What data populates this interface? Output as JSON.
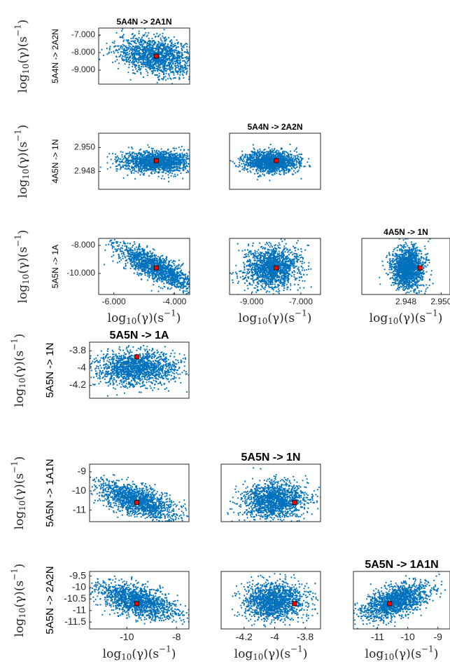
{
  "figure": {
    "axis_label": "log10(γ)(s⁻¹)"
  },
  "colors": {
    "points": "#0072BD",
    "marker": "#ff0000",
    "axes": "#262626"
  },
  "chart_data": [
    {
      "id": "a1",
      "type": "scatter",
      "title": "5A4N -> 2A1N",
      "ylabel": "5A4N -> 2A2N",
      "xlim": [
        -6.5,
        -3.5
      ],
      "ylim": [
        -9.8,
        -6.6
      ],
      "xticks": [],
      "yticks": [
        -9,
        -8,
        -7
      ],
      "yticklabels": [
        "-9.000",
        "-8.000",
        "-7.000"
      ],
      "cloud": {
        "cx": -4.6,
        "sx": 0.65,
        "cy": -8.2,
        "sy": 0.55,
        "rho": -0.3,
        "n": 1500
      },
      "marker": {
        "x": -4.6,
        "y": -8.2
      },
      "show_left_label": true,
      "show_bottom_label": false
    },
    {
      "id": "b1",
      "type": "scatter",
      "title": "",
      "ylabel": "4A5N -> 1N",
      "xlim": [
        -6.5,
        -3.5
      ],
      "ylim": [
        2.9465,
        2.9512
      ],
      "xticks": [],
      "yticks": [
        2.948,
        2.95
      ],
      "yticklabels": [
        "2.948",
        "2.950"
      ],
      "cloud": {
        "cx": -4.6,
        "sx": 0.6,
        "cy": 2.9488,
        "sy": 0.00045,
        "rho": 0,
        "n": 1500
      },
      "marker": {
        "x": -4.6,
        "y": 2.9489
      },
      "show_left_label": true,
      "show_bottom_label": false
    },
    {
      "id": "b2",
      "type": "scatter",
      "title": "5A4N -> 2A2N",
      "ylabel": "",
      "xlim": [
        -9.9,
        -6.2
      ],
      "ylim": [
        2.9465,
        2.9512
      ],
      "xticks": [],
      "yticks": [],
      "yticklabels": [],
      "cloud": {
        "cx": -8.2,
        "sx": 0.55,
        "cy": 2.9488,
        "sy": 0.00045,
        "rho": 0,
        "n": 1500
      },
      "marker": {
        "x": -8.0,
        "y": 2.9489
      },
      "show_left_label": false,
      "show_bottom_label": false
    },
    {
      "id": "c1",
      "type": "scatter",
      "title": "",
      "ylabel": "5A5N -> 1A",
      "xlim": [
        -6.5,
        -3.5
      ],
      "ylim": [
        -11.5,
        -7.5
      ],
      "xticks": [
        -6,
        -4
      ],
      "xticklabels": [
        "-6.000",
        "-4.000"
      ],
      "yticks": [
        -10,
        -8
      ],
      "yticklabels": [
        "-10.000",
        "-8.000"
      ],
      "cloud": {
        "cx": -4.6,
        "sx": 0.65,
        "cy": -9.6,
        "sy": 0.8,
        "rho": -0.8,
        "n": 1500
      },
      "marker": {
        "x": -4.6,
        "y": -9.6
      },
      "show_left_label": true,
      "show_bottom_label": true
    },
    {
      "id": "c2",
      "type": "scatter",
      "title": "",
      "ylabel": "",
      "xlim": [
        -9.9,
        -6.2
      ],
      "ylim": [
        -11.5,
        -7.5
      ],
      "xticks": [
        -9,
        -7
      ],
      "xticklabels": [
        "-9.000",
        "-7.000"
      ],
      "yticks": [],
      "yticklabels": [],
      "cloud": {
        "cx": -8.2,
        "sx": 0.55,
        "cy": -9.6,
        "sy": 0.75,
        "rho": 0.1,
        "n": 1500
      },
      "marker": {
        "x": -8.0,
        "y": -9.6
      },
      "show_left_label": false,
      "show_bottom_label": true
    },
    {
      "id": "c3",
      "type": "scatter",
      "title": "4A5N -> 1N",
      "ylabel": "",
      "xlim": [
        2.9455,
        2.9505
      ],
      "ylim": [
        -11.5,
        -7.5
      ],
      "xticks": [
        2.948,
        2.95
      ],
      "xticklabels": [
        "2.948",
        "2.950"
      ],
      "yticks": [],
      "yticklabels": [],
      "cloud": {
        "cx": 2.9481,
        "sx": 0.00045,
        "cy": -9.6,
        "sy": 0.75,
        "rho": 0,
        "n": 1500
      },
      "marker": {
        "x": 2.9488,
        "y": -9.6
      },
      "show_left_label": false,
      "show_bottom_label": true
    },
    {
      "id": "d1",
      "type": "scatter",
      "title": "5A5N -> 1A",
      "ylabel": "5A5N -> 1N",
      "xlim": [
        -11.5,
        -7.5
      ],
      "ylim": [
        -4.35,
        -3.7
      ],
      "xticks": [],
      "yticks": [
        -4.2,
        -4,
        -3.8
      ],
      "yticklabels": [
        "-4.2",
        "-4",
        "-3.8"
      ],
      "cloud": {
        "cx": -9.6,
        "sx": 0.8,
        "cy": -4.0,
        "sy": 0.1,
        "rho": 0,
        "n": 1500
      },
      "marker": {
        "x": -9.6,
        "y": -3.87
      },
      "show_left_label": true,
      "show_bottom_label": false
    },
    {
      "id": "e1",
      "type": "scatter",
      "title": "",
      "ylabel": "5A5N -> 1A1N",
      "xlim": [
        -11.5,
        -7.5
      ],
      "ylim": [
        -11.6,
        -8.6
      ],
      "xticks": [],
      "yticks": [
        -11,
        -10,
        -9
      ],
      "yticklabels": [
        "-11",
        "-10",
        "-9"
      ],
      "cloud": {
        "cx": -9.6,
        "sx": 0.8,
        "cy": -10.5,
        "sy": 0.5,
        "rho": -0.6,
        "n": 1500
      },
      "marker": {
        "x": -9.6,
        "y": -10.6
      },
      "show_left_label": true,
      "show_bottom_label": false
    },
    {
      "id": "e2",
      "type": "scatter",
      "title": "5A5N -> 1N",
      "ylabel": "",
      "xlim": [
        -4.35,
        -3.7
      ],
      "ylim": [
        -11.6,
        -8.6
      ],
      "xticks": [],
      "yticks": [],
      "yticklabels": [],
      "cloud": {
        "cx": -4.0,
        "sx": 0.1,
        "cy": -10.5,
        "sy": 0.5,
        "rho": 0.05,
        "n": 1500
      },
      "marker": {
        "x": -3.87,
        "y": -10.6
      },
      "show_left_label": false,
      "show_bottom_label": false
    },
    {
      "id": "f1",
      "type": "scatter",
      "title": "",
      "ylabel": "5A5N -> 2A2N",
      "xlim": [
        -11.5,
        -7.5
      ],
      "ylim": [
        -11.8,
        -9.3
      ],
      "xticks": [
        -10,
        -8
      ],
      "xticklabels": [
        "-10",
        "-8"
      ],
      "yticks": [
        -11.5,
        -11,
        -10.5,
        -10,
        -9.5
      ],
      "yticklabels": [
        "-11.5",
        "-11",
        "-10.5",
        "-10",
        "-9.5"
      ],
      "cloud": {
        "cx": -9.6,
        "sx": 0.8,
        "cy": -10.6,
        "sy": 0.4,
        "rho": -0.6,
        "n": 1500
      },
      "marker": {
        "x": -9.6,
        "y": -10.7
      },
      "show_left_label": true,
      "show_bottom_label": true
    },
    {
      "id": "f2",
      "type": "scatter",
      "title": "",
      "ylabel": "",
      "xlim": [
        -4.35,
        -3.7
      ],
      "ylim": [
        -11.8,
        -9.3
      ],
      "xticks": [
        -4.2,
        -4,
        -3.8
      ],
      "xticklabels": [
        "-4.2",
        "-4",
        "-3.8"
      ],
      "yticks": [],
      "yticklabels": [],
      "cloud": {
        "cx": -4.0,
        "sx": 0.1,
        "cy": -10.6,
        "sy": 0.4,
        "rho": 0,
        "n": 1500
      },
      "marker": {
        "x": -3.87,
        "y": -10.7
      },
      "show_left_label": false,
      "show_bottom_label": true
    },
    {
      "id": "f3",
      "type": "scatter",
      "title": "5A5N -> 1A1N",
      "ylabel": "",
      "xlim": [
        -11.8,
        -8.6
      ],
      "ylim": [
        -11.8,
        -9.3
      ],
      "xticks": [
        -11,
        -10,
        -9
      ],
      "xticklabels": [
        "-11",
        "-10",
        "-9"
      ],
      "yticks": [],
      "yticklabels": [],
      "cloud": {
        "cx": -10.4,
        "sx": 0.55,
        "cy": -10.6,
        "sy": 0.4,
        "rho": 0.55,
        "n": 1500
      },
      "marker": {
        "x": -10.6,
        "y": -10.7
      },
      "show_left_label": false,
      "show_bottom_label": true
    }
  ]
}
